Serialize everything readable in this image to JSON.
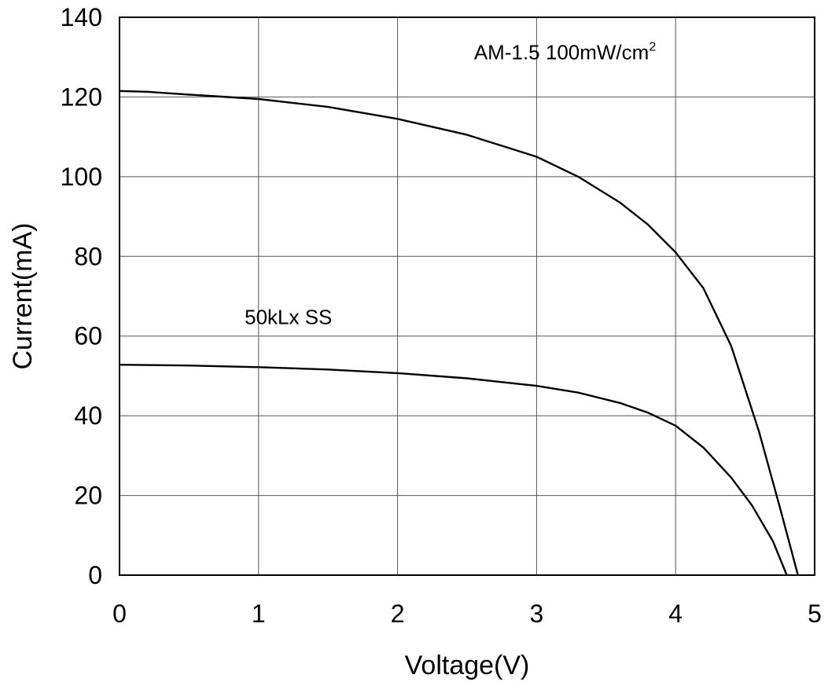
{
  "chart_data": {
    "type": "line",
    "title": "",
    "xlabel": "Voltage(V)",
    "ylabel": "Current(mA)",
    "xlim": [
      0,
      5
    ],
    "ylim": [
      0,
      140
    ],
    "xticks": [
      0,
      1,
      2,
      3,
      4,
      5
    ],
    "yticks": [
      0,
      20,
      40,
      60,
      80,
      100,
      120,
      140
    ],
    "grid": true,
    "annotations": [
      {
        "text": "AM-1.5 100mW/cm",
        "sup": "2",
        "x": 2.55,
        "y": 129.5
      },
      {
        "text": "50kLx  SS",
        "x": 0.9,
        "y": 63
      }
    ],
    "series": [
      {
        "x": [
          0,
          0.2,
          0.5,
          1.0,
          1.5,
          2.0,
          2.5,
          3.0,
          3.3,
          3.6,
          3.8,
          4.0,
          4.2,
          4.4,
          4.6,
          4.75,
          4.88
        ],
        "y": [
          121.5,
          121.3,
          120.6,
          119.5,
          117.5,
          114.5,
          110.5,
          105,
          100,
          93.5,
          88,
          81,
          72,
          57.5,
          36,
          17,
          0
        ]
      },
      {
        "x": [
          0,
          0.5,
          1.0,
          1.5,
          2.0,
          2.5,
          3.0,
          3.3,
          3.6,
          3.8,
          4.0,
          4.2,
          4.4,
          4.55,
          4.7,
          4.8
        ],
        "y": [
          52.8,
          52.6,
          52.2,
          51.6,
          50.7,
          49.4,
          47.5,
          45.8,
          43.2,
          40.8,
          37.5,
          32,
          24.5,
          17.5,
          8.5,
          0
        ]
      }
    ]
  }
}
